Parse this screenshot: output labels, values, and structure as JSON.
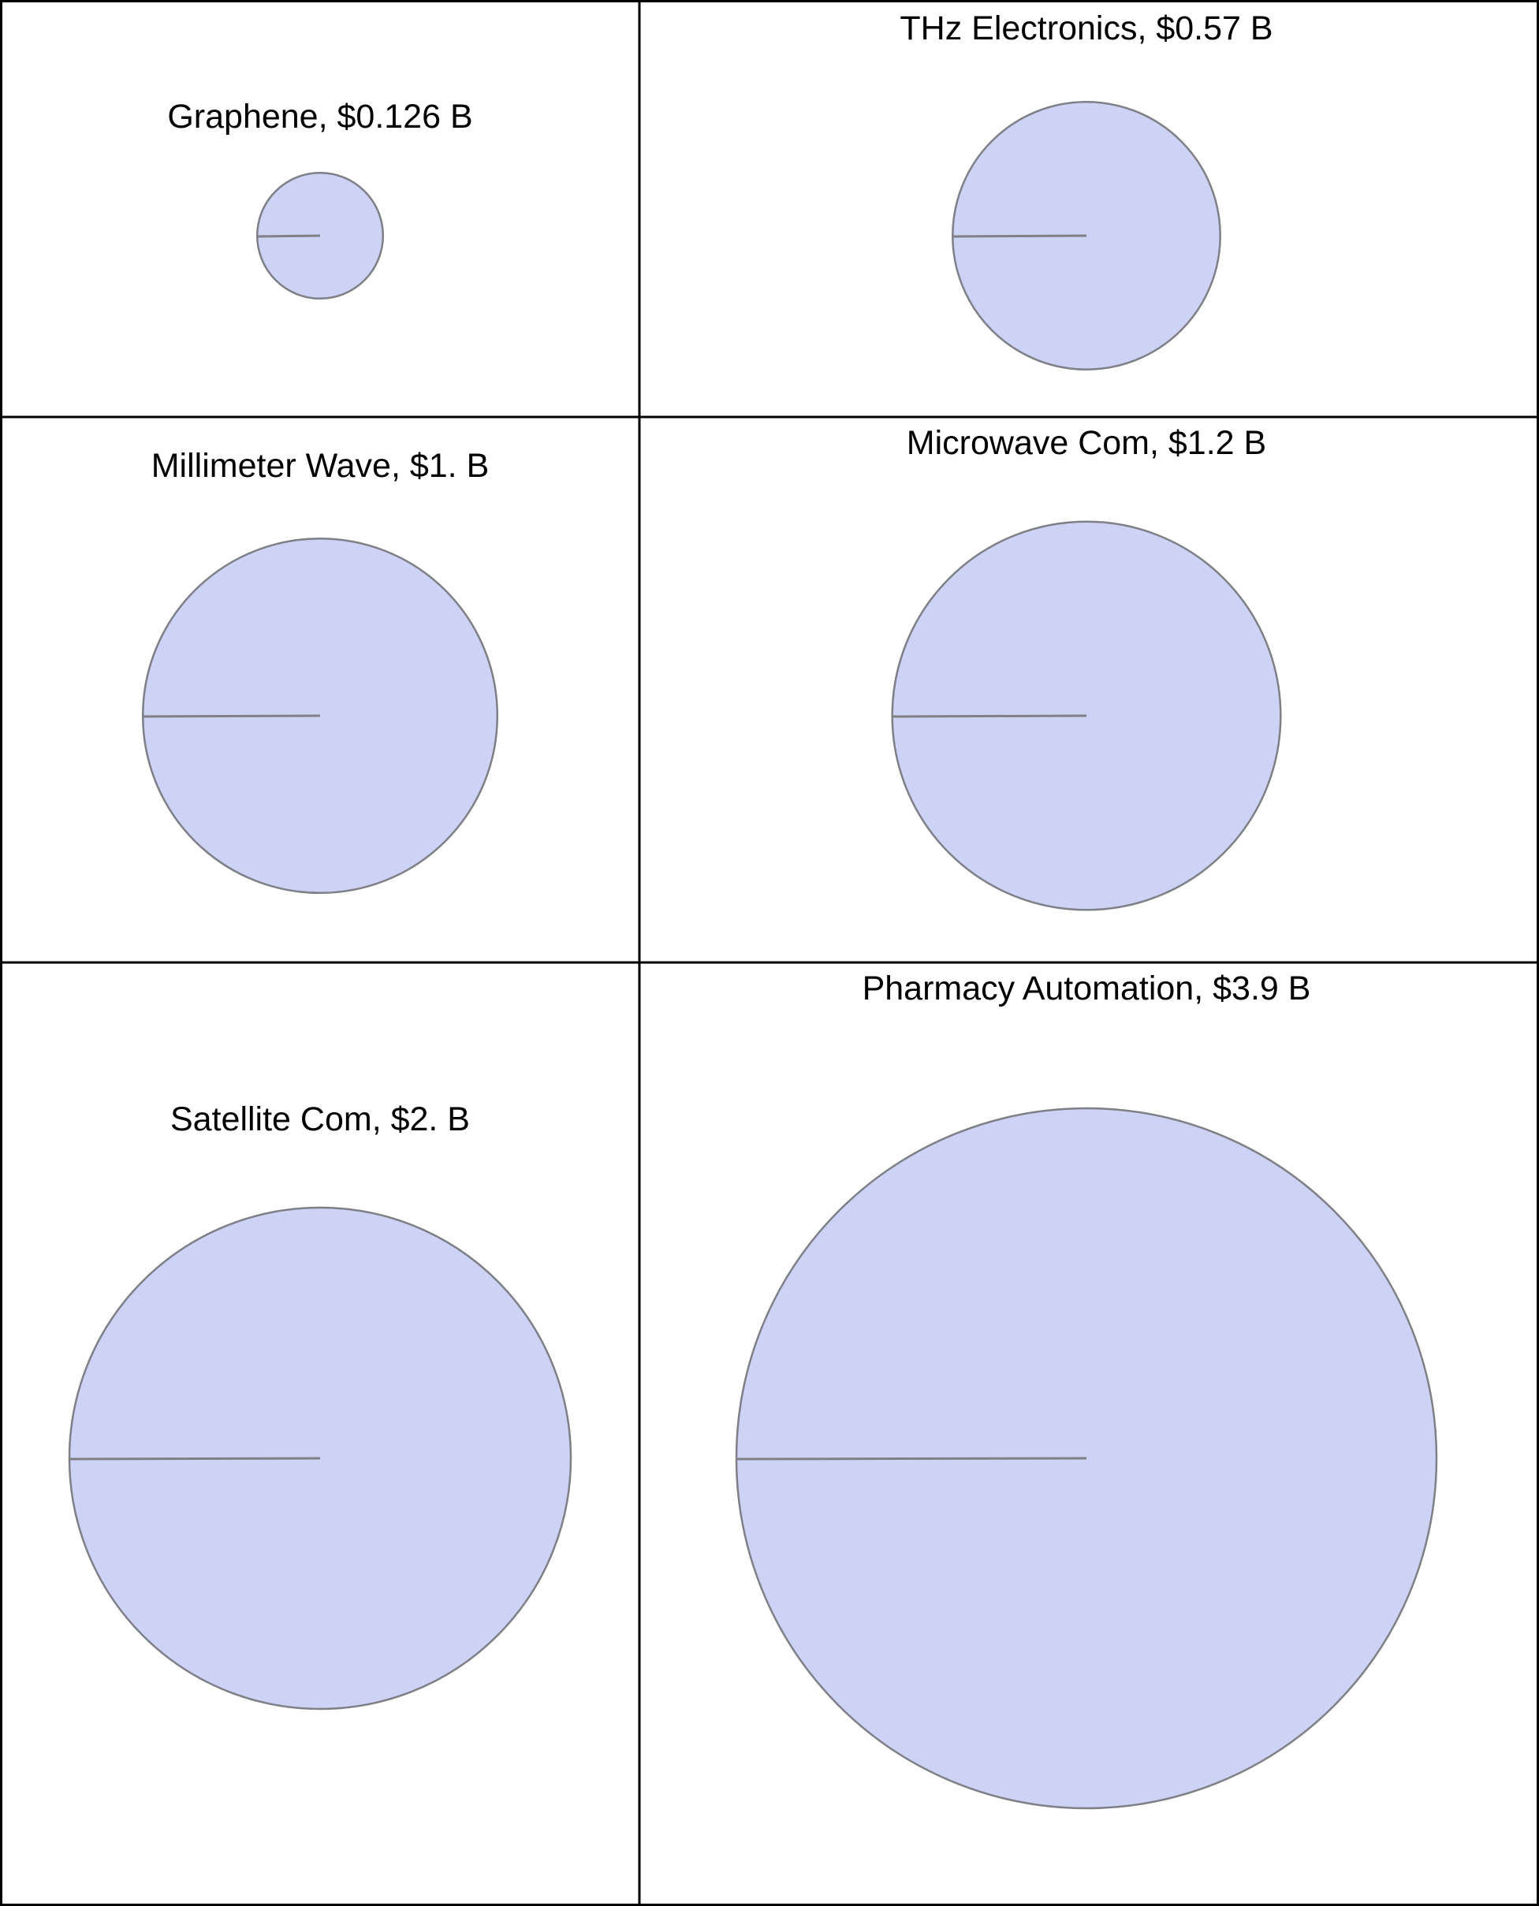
{
  "chart_data": {
    "type": "pie",
    "panels": [
      {
        "title": "Graphene, $0.126 B",
        "value": 0.126,
        "slices": [
          100
        ]
      },
      {
        "title": "THz Electronics, $0.57 B",
        "value": 0.57,
        "slices": [
          100
        ]
      },
      {
        "title": "Millimeter Wave, $1. B",
        "value": 1.0,
        "slices": [
          100
        ]
      },
      {
        "title": "Microwave Com, $1.2 B",
        "value": 1.2,
        "slices": [
          100
        ]
      },
      {
        "title": "Satellite Com, $2. B",
        "value": 2.0,
        "slices": [
          100
        ]
      },
      {
        "title": "Pharmacy Automation, $3.9 B",
        "value": 3.9,
        "slices": [
          100
        ]
      }
    ]
  },
  "colors": {
    "slice_fill": "#ccd3f4",
    "slice_stroke": "#7f7f88",
    "grid_border": "#000000"
  }
}
